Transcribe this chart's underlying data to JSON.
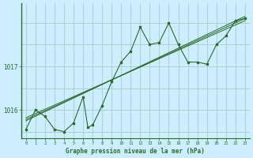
{
  "background_color": "#cceeff",
  "grid_color": "#aacccc",
  "line_color": "#2d6a2d",
  "xlabel": "Graphe pression niveau de la mer (hPa)",
  "ylabel_ticks": [
    1016,
    1017
  ],
  "xlim": [
    -0.5,
    23.5
  ],
  "ylim": [
    1015.35,
    1018.45
  ],
  "x_ticks": [
    0,
    1,
    2,
    3,
    4,
    5,
    6,
    7,
    8,
    9,
    10,
    11,
    12,
    13,
    14,
    15,
    16,
    17,
    18,
    19,
    20,
    21,
    22,
    23
  ],
  "series_main": {
    "x": [
      0,
      1,
      2,
      3,
      4,
      5,
      6,
      6.5,
      7,
      8,
      9,
      10,
      11,
      12,
      13,
      14,
      15,
      16,
      17,
      18,
      19,
      20,
      21,
      22,
      23
    ],
    "y": [
      1015.55,
      1016.0,
      1015.85,
      1015.55,
      1015.5,
      1015.7,
      1016.3,
      1015.6,
      1015.65,
      1016.1,
      1016.65,
      1017.1,
      1017.35,
      1017.9,
      1017.5,
      1017.55,
      1018.0,
      1017.5,
      1017.1,
      1017.1,
      1017.05,
      1017.5,
      1017.7,
      1018.05,
      1018.1
    ]
  },
  "trend1": {
    "x": [
      0,
      23
    ],
    "y": [
      1015.75,
      1018.15
    ]
  },
  "trend2": {
    "x": [
      0,
      23
    ],
    "y": [
      1015.78,
      1018.1
    ]
  },
  "trend3": {
    "x": [
      0,
      23
    ],
    "y": [
      1015.82,
      1018.05
    ]
  }
}
